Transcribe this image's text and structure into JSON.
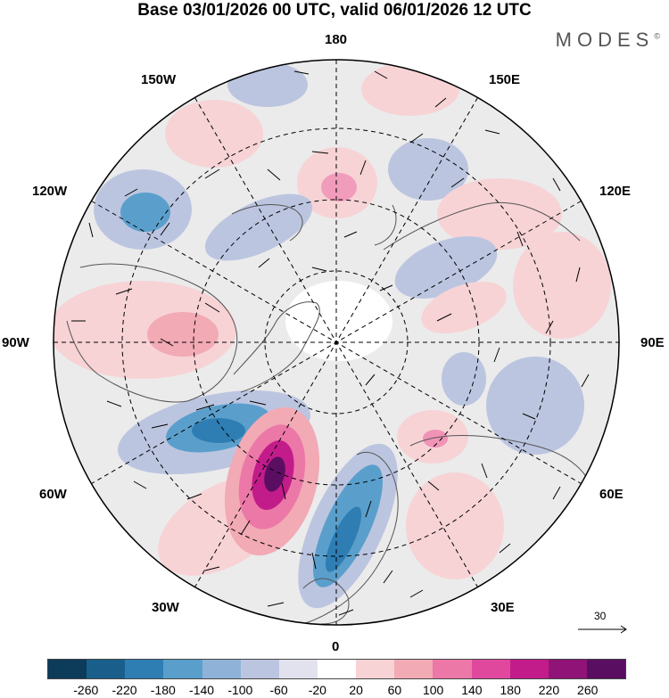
{
  "title": "Base 03/01/2026 00 UTC, valid 06/01/2026 12 UTC",
  "brand": "MODES",
  "brand_mark": "©",
  "longitude_labels": {
    "lon_180": "180",
    "lon_150w": "150W",
    "lon_150e": "150E",
    "lon_120w": "120W",
    "lon_120e": "120E",
    "lon_90w": "90W",
    "lon_90e": "90E",
    "lon_60w": "60W",
    "lon_60e": "60E",
    "lon_30w": "30W",
    "lon_30e": "30E",
    "lon_0": "0"
  },
  "vector_scale": {
    "label": "30",
    "units": "reference wind vector"
  },
  "colorbar": {
    "colors": [
      "#0d3b5a",
      "#1a5f8c",
      "#2e7db3",
      "#5a9fcc",
      "#8fb3d8",
      "#bcc5e0",
      "#e2e2ef",
      "#ffffff",
      "#f7d3d6",
      "#f2aab5",
      "#ec78a8",
      "#e0489e",
      "#c21c8a",
      "#901477",
      "#5a0e62"
    ],
    "ticks": [
      "-260",
      "-220",
      "-180",
      "-140",
      "-100",
      "-60",
      "-20",
      "20",
      "60",
      "100",
      "140",
      "180",
      "220",
      "260"
    ]
  },
  "anomaly_centers": [
    {
      "label": "strong positive anomaly",
      "lon": -20,
      "lat": 55,
      "value": 260
    },
    {
      "label": "negative anomaly",
      "lon": 10,
      "lat": 50,
      "value": -180
    },
    {
      "label": "negative anomaly",
      "lon": -50,
      "lat": 45,
      "value": -140
    },
    {
      "label": "negative anomaly",
      "lon": -130,
      "lat": 45,
      "value": -160
    },
    {
      "label": "positive anomaly",
      "lon": 175,
      "lat": 65,
      "value": 120
    },
    {
      "label": "positive anomaly",
      "lon": 50,
      "lat": 65,
      "value": 80
    }
  ]
}
